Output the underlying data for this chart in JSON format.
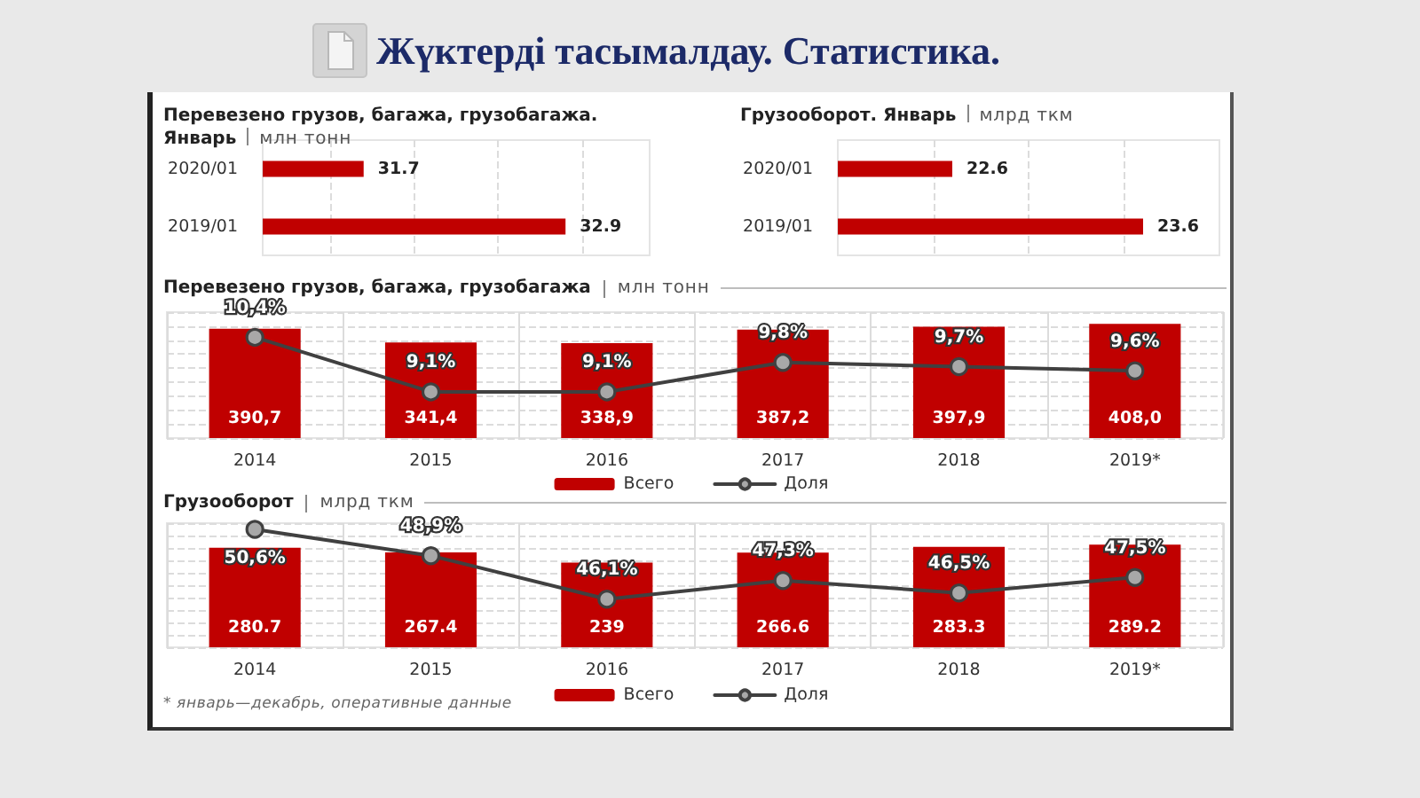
{
  "chart_data": [
    {
      "type": "other",
      "title": "Жүктерді тасымалдау. Статистика."
    },
    {
      "type": "bar",
      "orientation": "horizontal",
      "title": "Перевезено грузов, багажа, грузобагажа. Январь",
      "subtitle": "млн тонн",
      "categories": [
        "2020/01",
        "2019/01"
      ],
      "values": [
        31.7,
        32.9
      ],
      "color": "#c00000",
      "xlim": [
        31.1,
        33.4
      ],
      "xticks": [
        {
          "value": 31.5,
          "label": null
        },
        {
          "value": 32,
          "label": null
        },
        {
          "value": 32.5,
          "label": null
        },
        {
          "value": 33,
          "label": null
        }
      ],
      "grid": "x",
      "tick_labels": "y",
      "data_labels": true
    },
    {
      "type": "bar",
      "orientation": "horizontal",
      "title": "Грузооборот. Январь",
      "subtitle": "млрд ткм",
      "categories": [
        "2020/01",
        "2019/01"
      ],
      "values": [
        22.6,
        23.6
      ],
      "color": "#c00000",
      "xlim": [
        22,
        24
      ],
      "xticks": [
        {
          "value": 22.5,
          "label": null
        },
        {
          "value": 23,
          "label": null
        },
        {
          "value": 23.5,
          "label": null
        }
      ],
      "grid": "x",
      "tick_labels": "y",
      "data_labels": true
    },
    {
      "type": "bar",
      "title": "Перевезено грузов, багажа, грузобагажа",
      "subtitle": "млн тонн",
      "categories": [
        "2014",
        "2015",
        "2016",
        "2017",
        "2018",
        "2019*"
      ],
      "series": [
        {
          "name": "Всего",
          "type": "bar",
          "color": "#c00000",
          "values": [
            390.7,
            341.4,
            338.9,
            387.2,
            397.9,
            408.0
          ],
          "value_labels": [
            "390,7",
            "341,4",
            "338,9",
            "387,2",
            "397,9",
            "408,0"
          ]
        },
        {
          "name": "Доля",
          "type": "line",
          "axis": "y2",
          "color": "#404040",
          "values": [
            10.4,
            9.1,
            9.1,
            9.8,
            9.7,
            9.6
          ],
          "value_labels": [
            "10,4%",
            "9,1%",
            "9,1%",
            "9,8%",
            "9,7%",
            "9,6%"
          ]
        }
      ],
      "ylim": [
        0,
        450
      ],
      "yticks": [
        {
          "value": 0,
          "label": null
        },
        {
          "value": 50,
          "label": null
        },
        {
          "value": 100,
          "label": null
        },
        {
          "value": 150,
          "label": null
        },
        {
          "value": 200,
          "label": null
        },
        {
          "value": 250,
          "label": null
        },
        {
          "value": 300,
          "label": null
        },
        {
          "value": 350,
          "label": null
        },
        {
          "value": 400,
          "label": null
        },
        {
          "value": 450,
          "label": null
        }
      ],
      "y2lim": [
        8,
        11
      ],
      "grid": true,
      "tick_labels": "x",
      "legend": "bottom",
      "marker": "circle",
      "line_style": "solid"
    },
    {
      "type": "bar",
      "title": "Грузооборот",
      "subtitle": "млрд ткм",
      "categories": [
        "2014",
        "2015",
        "2016",
        "2017",
        "2018",
        "2019*"
      ],
      "series": [
        {
          "name": "Всего",
          "type": "bar",
          "color": "#c00000",
          "values": [
            280.7,
            267.4,
            239,
            266.6,
            283.3,
            289.2
          ],
          "value_labels": [
            "280.7",
            "267.4",
            "239",
            "266.6",
            "283.3",
            "289.2"
          ]
        },
        {
          "name": "Доля",
          "type": "line",
          "axis": "y2",
          "color": "#404040",
          "values": [
            50.6,
            48.9,
            46.1,
            47.3,
            46.5,
            47.5
          ],
          "value_labels": [
            "50,6%",
            "48,9%",
            "46,1%",
            "47,3%",
            "46,5%",
            "47,5%"
          ]
        }
      ],
      "ylim": [
        0,
        350
      ],
      "yticks": [
        {
          "value": 0,
          "label": null
        },
        {
          "value": 35,
          "label": null
        },
        {
          "value": 70,
          "label": null
        },
        {
          "value": 105,
          "label": null
        },
        {
          "value": 140,
          "label": null
        },
        {
          "value": 175,
          "label": null
        },
        {
          "value": 210,
          "label": null
        },
        {
          "value": 245,
          "label": null
        },
        {
          "value": 280,
          "label": null
        },
        {
          "value": 315,
          "label": null
        },
        {
          "value": 350,
          "label": null
        }
      ],
      "y2lim": [
        43,
        51
      ],
      "grid": true,
      "tick_labels": "x",
      "legend": "bottom",
      "marker": "circle",
      "line_style": "solid",
      "annotations": [
        "* январь—декабрь, оперативные данные"
      ]
    }
  ]
}
